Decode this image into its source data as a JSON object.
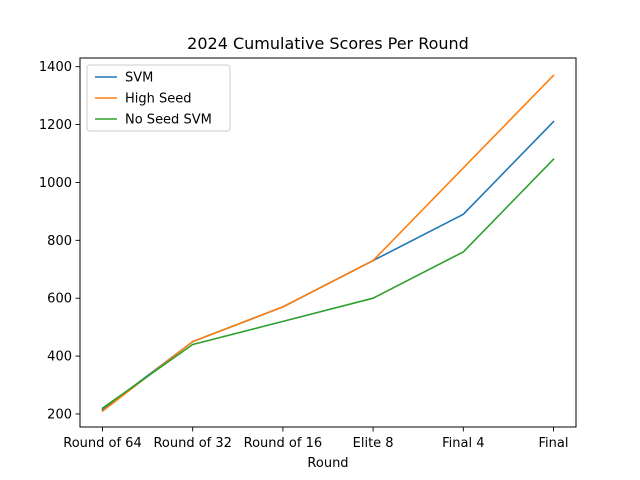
{
  "chart_data": {
    "type": "line",
    "title": "2024 Cumulative Scores Per Round",
    "xlabel": "Round",
    "ylabel": "",
    "categories": [
      "Round of 64",
      "Round of 32",
      "Round of 16",
      "Elite 8",
      "Final 4",
      "Final"
    ],
    "ylim": [
      155,
      1430
    ],
    "yticks": [
      200,
      400,
      600,
      800,
      1000,
      1200,
      1400
    ],
    "grid": false,
    "legend_position": "top-left",
    "series": [
      {
        "name": "SVM",
        "color": "#1f77b4",
        "values": [
          215,
          450,
          570,
          730,
          890,
          1210
        ]
      },
      {
        "name": "High Seed",
        "color": "#ff7f0e",
        "values": [
          210,
          450,
          570,
          730,
          1050,
          1370
        ]
      },
      {
        "name": "No Seed SVM",
        "color": "#2ca02c",
        "values": [
          220,
          440,
          520,
          600,
          760,
          1080
        ]
      }
    ]
  }
}
